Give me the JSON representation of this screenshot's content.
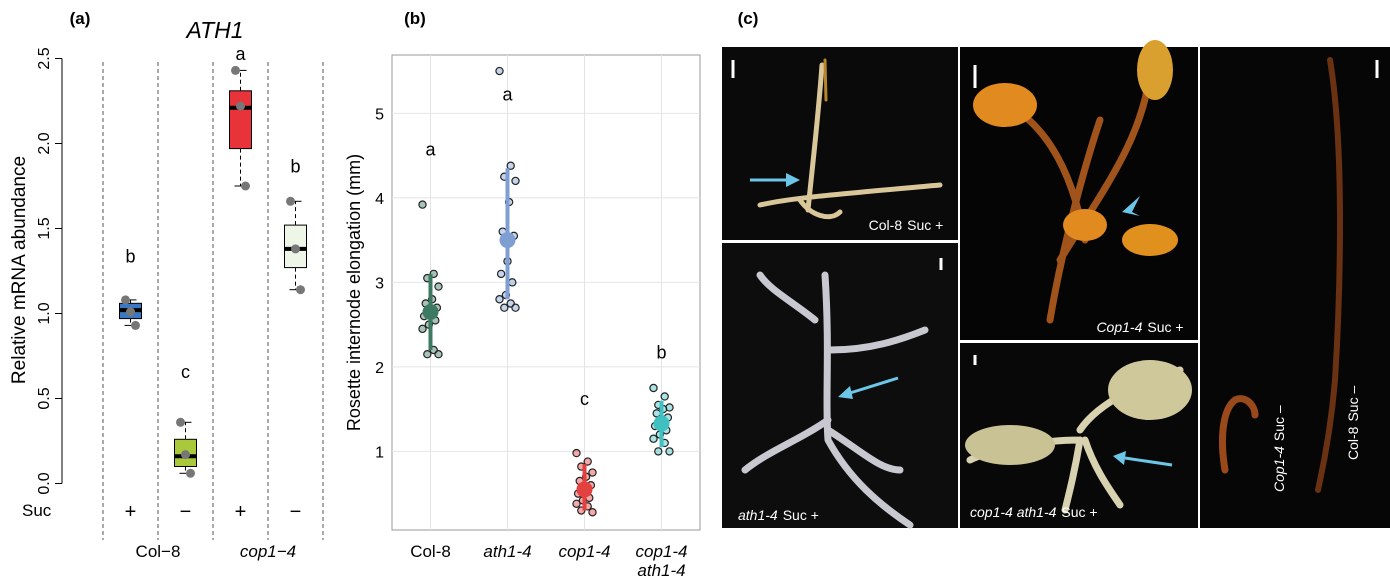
{
  "chart_data": [
    {
      "type": "box",
      "panel_label": "(a)",
      "title": "ATH1",
      "y_label": "Relative mRNA abundance",
      "row_label": "Suc",
      "categories": [
        "+",
        "−",
        "+",
        "−"
      ],
      "groups": [
        "Col−8",
        "cop1−4"
      ],
      "ylim": [
        -0.05,
        2.55
      ],
      "yticks": [
        {
          "value": 0,
          "label": "0.0"
        },
        0.5,
        {
          "value": 1,
          "label": "1.0"
        },
        1.5,
        {
          "value": 2,
          "label": "2.0"
        },
        2.5
      ],
      "boxes": [
        {
          "whisker_low": 0.93,
          "q1": 0.97,
          "median": 1.02,
          "q3": 1.06,
          "whisker_high": 1.08,
          "color": "#3a78c6",
          "points": [
            1.08,
            1.01,
            0.93
          ]
        },
        {
          "whisker_low": 0.06,
          "q1": 0.1,
          "median": 0.16,
          "q3": 0.26,
          "whisker_high": 0.36,
          "color": "#a9c83c",
          "points": [
            0.36,
            0.17,
            0.06
          ]
        },
        {
          "whisker_low": 1.75,
          "q1": 1.97,
          "median": 2.21,
          "q3": 2.31,
          "whisker_high": 2.43,
          "color": "#e8333a",
          "points": [
            2.43,
            2.22,
            1.75
          ]
        },
        {
          "whisker_low": 1.14,
          "q1": 1.27,
          "median": 1.38,
          "q3": 1.52,
          "whisker_high": 1.66,
          "color": "#eef6e8",
          "points": [
            1.66,
            1.38,
            1.14
          ]
        }
      ],
      "letters": [
        "b",
        "c",
        "a",
        "b"
      ],
      "letter_y": [
        1.3,
        0.62,
        2.49,
        1.83
      ]
    },
    {
      "type": "dot",
      "panel_label": "(b)",
      "y_label": "Rosette internode elongation (mm)",
      "categories": [
        "Col-8",
        "ath1-4",
        "cop1-4",
        "cop1-4 ath1-4"
      ],
      "ylim": [
        0.07,
        5.69
      ],
      "yticks": [
        1,
        2,
        3,
        4,
        5
      ],
      "grid": true,
      "colors": [
        "#3d7a63",
        "#7f9fd3",
        "#e2413f",
        "#40c0c0"
      ],
      "means": [
        2.65,
        3.5,
        0.55,
        1.33
      ],
      "low": [
        2.2,
        2.8,
        0.3,
        1.05
      ],
      "high": [
        3.1,
        4.35,
        0.85,
        1.6
      ],
      "points": [
        [
          3.92,
          3.1,
          3.05,
          2.95,
          2.8,
          2.75,
          2.7,
          2.65,
          2.6,
          2.55,
          2.5,
          2.45,
          2.2,
          2.15,
          2.15
        ],
        [
          5.5,
          4.38,
          4.25,
          4.2,
          3.95,
          3.6,
          3.55,
          3.25,
          3.1,
          3.0,
          2.85,
          2.8,
          2.75,
          2.7,
          2.7
        ],
        [
          0.98,
          0.88,
          0.82,
          0.75,
          0.7,
          0.65,
          0.6,
          0.55,
          0.5,
          0.45,
          0.42,
          0.38,
          0.35,
          0.3,
          0.28
        ],
        [
          1.75,
          1.65,
          1.55,
          1.52,
          1.5,
          1.45,
          1.4,
          1.38,
          1.3,
          1.25,
          1.2,
          1.15,
          1.1,
          1.0,
          1.0
        ]
      ],
      "letters": [
        "a",
        "a",
        "c",
        "b"
      ],
      "letter_y": [
        4.5,
        5.15,
        1.55,
        2.1
      ]
    }
  ],
  "photo_panel": {
    "label": "(c)",
    "captions": [
      {
        "genotype": "Col-8",
        "condition": "Suc +"
      },
      {
        "genotype": "Cop1-4",
        "condition": "Suc +"
      },
      {
        "genotype": "ath1-4",
        "condition": "Suc +"
      },
      {
        "genotype": "cop1-4 ath1-4",
        "condition": "Suc +"
      },
      {
        "genotype": "Cop1-4",
        "condition": "Suc –"
      },
      {
        "genotype": "Col-8",
        "condition": "Suc –"
      }
    ]
  }
}
